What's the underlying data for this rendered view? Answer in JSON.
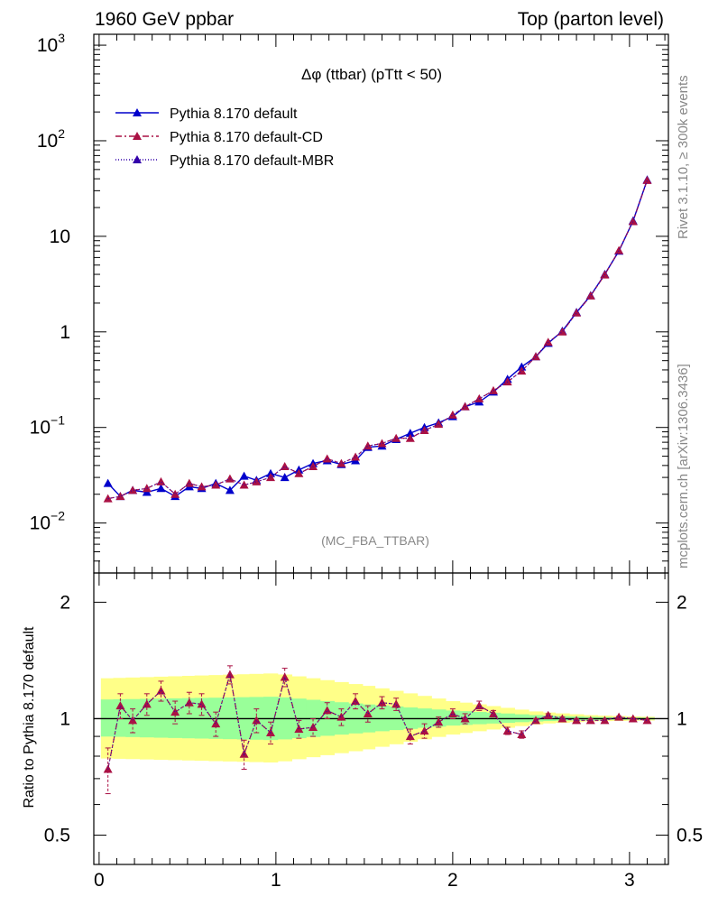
{
  "header": {
    "left": "1960 GeV ppbar",
    "right": "Top (parton level)"
  },
  "side": {
    "rivet": "Rivet 3.1.10, ≥ 300k events",
    "mcplots": "mcplots.cern.ch [arXiv:1306.3436]"
  },
  "watermark": "(MC_FBA_TTBAR)",
  "chart_data": [
    {
      "type": "line",
      "title": "Δφ (ttbar) (pTtt < 50)",
      "yscale": "log",
      "xlim": [
        -0.03,
        3.22
      ],
      "ylim": [
        0.003,
        1300
      ],
      "yticks": [
        {
          "value": 0.01,
          "base": "10",
          "exp": "−2"
        },
        {
          "value": 0.1,
          "base": "10",
          "exp": "−1"
        },
        {
          "value": 1,
          "base": "1",
          "exp": ""
        },
        {
          "value": 10,
          "base": "10",
          "exp": ""
        },
        {
          "value": 100,
          "base": "10",
          "exp": "2"
        },
        {
          "value": 1000,
          "base": "10",
          "exp": "3"
        }
      ],
      "legend_position": "top-left",
      "x": [
        0.05,
        0.12,
        0.19,
        0.27,
        0.35,
        0.43,
        0.51,
        0.58,
        0.66,
        0.74,
        0.82,
        0.89,
        0.97,
        1.05,
        1.13,
        1.21,
        1.29,
        1.37,
        1.45,
        1.52,
        1.6,
        1.68,
        1.76,
        1.84,
        1.92,
        2.0,
        2.07,
        2.15,
        2.23,
        2.31,
        2.39,
        2.47,
        2.54,
        2.62,
        2.7,
        2.78,
        2.86,
        2.94,
        3.02,
        3.1
      ],
      "series": [
        {
          "name": "Pythia 8.170 default",
          "color": "#0000cc",
          "dash": "",
          "values": [
            0.026,
            0.019,
            0.022,
            0.021,
            0.023,
            0.019,
            0.024,
            0.023,
            0.026,
            0.022,
            0.031,
            0.028,
            0.033,
            0.03,
            0.036,
            0.042,
            0.045,
            0.041,
            0.045,
            0.062,
            0.064,
            0.075,
            0.087,
            0.1,
            0.112,
            0.13,
            0.165,
            0.185,
            0.235,
            0.32,
            0.43,
            0.55,
            0.76,
            1.02,
            1.6,
            2.4,
            4.0,
            7.0,
            14.5,
            39
          ]
        },
        {
          "name": "Pythia 8.170 default-CD",
          "color": "#aa1144",
          "dash": "7,3,2,3",
          "values": [
            0.018,
            0.019,
            0.022,
            0.023,
            0.027,
            0.02,
            0.026,
            0.024,
            0.025,
            0.029,
            0.025,
            0.027,
            0.03,
            0.039,
            0.033,
            0.039,
            0.047,
            0.042,
            0.049,
            0.064,
            0.068,
            0.077,
            0.077,
            0.093,
            0.108,
            0.135,
            0.165,
            0.2,
            0.243,
            0.3,
            0.39,
            0.55,
            0.78,
            1.0,
            1.58,
            2.38,
            3.95,
            7.1,
            14.3,
            38.5
          ]
        },
        {
          "name": "Pythia 8.170 default-MBR",
          "color": "#3300aa",
          "dash": "1,2",
          "values": [
            0.018,
            0.019,
            0.022,
            0.023,
            0.027,
            0.02,
            0.026,
            0.024,
            0.025,
            0.029,
            0.025,
            0.027,
            0.03,
            0.039,
            0.033,
            0.039,
            0.047,
            0.042,
            0.049,
            0.064,
            0.068,
            0.077,
            0.077,
            0.093,
            0.108,
            0.135,
            0.165,
            0.2,
            0.243,
            0.3,
            0.39,
            0.55,
            0.78,
            1.0,
            1.58,
            2.38,
            3.95,
            7.1,
            14.3,
            38.5
          ]
        }
      ]
    },
    {
      "type": "line",
      "ylabel": "Ratio to Pythia 8.170 default",
      "yscale": "log",
      "xlim": [
        -0.03,
        3.22
      ],
      "ylim": [
        0.42,
        2.38
      ],
      "yticks": [
        0.5,
        1,
        2
      ],
      "xticks": [
        0,
        1,
        2,
        3
      ],
      "reference": 1,
      "bands": [
        {
          "name": "outer uncertainty",
          "color": "#ffff88",
          "x": [
            0.0,
            0.5,
            1.0,
            1.5,
            2.0,
            2.5,
            2.8,
            3.16
          ],
          "lower": [
            0.79,
            0.78,
            0.77,
            0.83,
            0.91,
            0.97,
            0.985,
            0.99
          ],
          "upper": [
            1.27,
            1.29,
            1.31,
            1.22,
            1.11,
            1.04,
            1.02,
            1.01
          ]
        },
        {
          "name": "inner uncertainty",
          "color": "#99ff99",
          "x": [
            0.0,
            0.5,
            1.0,
            1.5,
            2.0,
            2.5,
            2.8,
            3.16
          ],
          "lower": [
            0.9,
            0.89,
            0.88,
            0.92,
            0.96,
            0.985,
            0.993,
            0.995
          ],
          "upper": [
            1.12,
            1.13,
            1.14,
            1.09,
            1.05,
            1.02,
            1.01,
            1.005
          ]
        }
      ],
      "x": [
        0.05,
        0.12,
        0.19,
        0.27,
        0.35,
        0.43,
        0.51,
        0.58,
        0.66,
        0.74,
        0.82,
        0.89,
        0.97,
        1.05,
        1.13,
        1.21,
        1.29,
        1.37,
        1.45,
        1.52,
        1.6,
        1.68,
        1.76,
        1.84,
        1.92,
        2.0,
        2.07,
        2.15,
        2.23,
        2.31,
        2.39,
        2.47,
        2.54,
        2.62,
        2.7,
        2.78,
        2.86,
        2.94,
        3.02,
        3.1
      ],
      "series": [
        {
          "name": "Pythia 8.170 default-CD",
          "color": "#aa1144",
          "values": [
            0.74,
            1.08,
            0.99,
            1.09,
            1.18,
            1.04,
            1.1,
            1.09,
            0.97,
            1.3,
            0.81,
            0.99,
            0.92,
            1.28,
            0.94,
            0.95,
            1.05,
            1.01,
            1.11,
            1.03,
            1.1,
            1.09,
            0.9,
            0.93,
            0.98,
            1.03,
            1.0,
            1.08,
            1.03,
            0.93,
            0.91,
            0.99,
            1.02,
            1.0,
            0.99,
            0.99,
            0.99,
            1.01,
            1.0,
            0.99
          ],
          "err": [
            0.1,
            0.08,
            0.07,
            0.07,
            0.07,
            0.07,
            0.07,
            0.07,
            0.07,
            0.07,
            0.07,
            0.07,
            0.06,
            0.07,
            0.05,
            0.05,
            0.05,
            0.05,
            0.05,
            0.05,
            0.04,
            0.04,
            0.04,
            0.04,
            0.03,
            0.03,
            0.03,
            0.03,
            0.02,
            0.02,
            0.02,
            0.01,
            0.01,
            0.01,
            0.01,
            0.01,
            0.005,
            0.005,
            0.005,
            0.005
          ]
        },
        {
          "name": "Pythia 8.170 default-MBR",
          "color": "#3300aa",
          "values": [
            0.74,
            1.08,
            0.99,
            1.09,
            1.18,
            1.04,
            1.1,
            1.09,
            0.97,
            1.3,
            0.81,
            0.99,
            0.92,
            1.28,
            0.94,
            0.95,
            1.05,
            1.01,
            1.11,
            1.03,
            1.1,
            1.09,
            0.9,
            0.93,
            0.98,
            1.03,
            1.0,
            1.08,
            1.03,
            0.93,
            0.91,
            0.99,
            1.02,
            1.0,
            0.99,
            0.99,
            0.99,
            1.01,
            1.0,
            0.99
          ]
        }
      ]
    }
  ]
}
